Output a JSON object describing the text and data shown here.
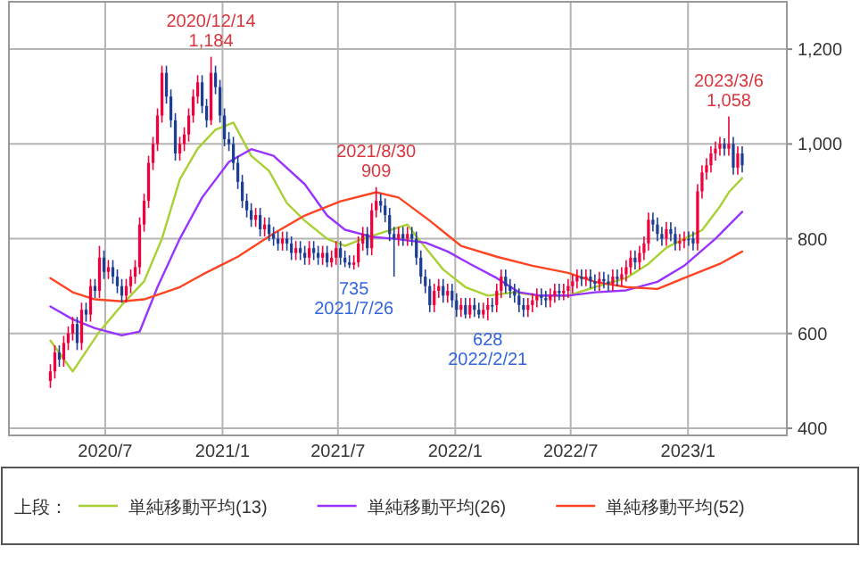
{
  "chart_data": {
    "type": "candlestick",
    "x": [
      "2020-04-06",
      "2020-04-13",
      "2020-04-20",
      "2020-04-27",
      "2020-05-04",
      "2020-05-11",
      "2020-05-18",
      "2020-05-25",
      "2020-06-01",
      "2020-06-08",
      "2020-06-15",
      "2020-06-22",
      "2020-06-29",
      "2020-07-06",
      "2020-07-13",
      "2020-07-20",
      "2020-07-27",
      "2020-08-03",
      "2020-08-10",
      "2020-08-17",
      "2020-08-24",
      "2020-08-31",
      "2020-09-07",
      "2020-09-14",
      "2020-09-21",
      "2020-09-28",
      "2020-10-05",
      "2020-10-12",
      "2020-10-19",
      "2020-10-26",
      "2020-11-02",
      "2020-11-09",
      "2020-11-16",
      "2020-11-23",
      "2020-11-30",
      "2020-12-07",
      "2020-12-14",
      "2020-12-21",
      "2020-12-28",
      "2021-01-04",
      "2021-01-11",
      "2021-01-18",
      "2021-01-25",
      "2021-02-01",
      "2021-02-08",
      "2021-02-15",
      "2021-02-22",
      "2021-03-01",
      "2021-03-08",
      "2021-03-15",
      "2021-03-22",
      "2021-03-29",
      "2021-04-05",
      "2021-04-12",
      "2021-04-19",
      "2021-04-26",
      "2021-05-03",
      "2021-05-10",
      "2021-05-17",
      "2021-05-24",
      "2021-05-31",
      "2021-06-07",
      "2021-06-14",
      "2021-06-21",
      "2021-06-28",
      "2021-07-05",
      "2021-07-12",
      "2021-07-19",
      "2021-07-26",
      "2021-08-02",
      "2021-08-09",
      "2021-08-16",
      "2021-08-23",
      "2021-08-30",
      "2021-09-06",
      "2021-09-13",
      "2021-09-20",
      "2021-09-27",
      "2021-10-04",
      "2021-10-11",
      "2021-10-18",
      "2021-10-25",
      "2021-11-01",
      "2021-11-08",
      "2021-11-15",
      "2021-11-22",
      "2021-11-29",
      "2021-12-06",
      "2021-12-13",
      "2021-12-20",
      "2021-12-27",
      "2022-01-03",
      "2022-01-10",
      "2022-01-17",
      "2022-01-24",
      "2022-01-31",
      "2022-02-07",
      "2022-02-14",
      "2022-02-21",
      "2022-02-28",
      "2022-03-07",
      "2022-03-14",
      "2022-03-21",
      "2022-03-28",
      "2022-04-04",
      "2022-04-11",
      "2022-04-18",
      "2022-04-25",
      "2022-05-02",
      "2022-05-09",
      "2022-05-16",
      "2022-05-23",
      "2022-05-30",
      "2022-06-06",
      "2022-06-13",
      "2022-06-20",
      "2022-06-27",
      "2022-07-04",
      "2022-07-11",
      "2022-07-18",
      "2022-07-25",
      "2022-08-01",
      "2022-08-08",
      "2022-08-15",
      "2022-08-22",
      "2022-08-29",
      "2022-09-05",
      "2022-09-12",
      "2022-09-19",
      "2022-09-26",
      "2022-10-03",
      "2022-10-10",
      "2022-10-17",
      "2022-10-24",
      "2022-10-31",
      "2022-11-07",
      "2022-11-14",
      "2022-11-21",
      "2022-11-28",
      "2022-12-05",
      "2022-12-12",
      "2022-12-19",
      "2022-12-26",
      "2023-01-02",
      "2023-01-09",
      "2023-01-16",
      "2023-01-23",
      "2023-01-30",
      "2023-02-06",
      "2023-02-13",
      "2023-02-20",
      "2023-02-27",
      "2023-03-06",
      "2023-03-13",
      "2023-03-20",
      "2023-03-27"
    ],
    "ohlc": [
      [
        500,
        535,
        485,
        520
      ],
      [
        520,
        575,
        505,
        560
      ],
      [
        560,
        575,
        530,
        545
      ],
      [
        545,
        595,
        530,
        580
      ],
      [
        580,
        615,
        565,
        600
      ],
      [
        600,
        635,
        585,
        620
      ],
      [
        620,
        635,
        565,
        580
      ],
      [
        580,
        665,
        565,
        650
      ],
      [
        650,
        665,
        625,
        640
      ],
      [
        640,
        715,
        625,
        700
      ],
      [
        700,
        715,
        675,
        690
      ],
      [
        690,
        785,
        675,
        760
      ],
      [
        760,
        775,
        715,
        730
      ],
      [
        730,
        755,
        715,
        740
      ],
      [
        740,
        755,
        705,
        720
      ],
      [
        720,
        735,
        685,
        700
      ],
      [
        700,
        715,
        665,
        680
      ],
      [
        680,
        715,
        665,
        700
      ],
      [
        700,
        735,
        685,
        720
      ],
      [
        720,
        755,
        705,
        740
      ],
      [
        740,
        845,
        725,
        830
      ],
      [
        830,
        895,
        815,
        880
      ],
      [
        880,
        975,
        865,
        960
      ],
      [
        960,
        1015,
        945,
        1000
      ],
      [
        1000,
        1075,
        985,
        1060
      ],
      [
        1060,
        1165,
        1045,
        1150
      ],
      [
        1150,
        1165,
        1085,
        1100
      ],
      [
        1100,
        1115,
        1035,
        1050
      ],
      [
        1050,
        1065,
        965,
        980
      ],
      [
        980,
        1015,
        965,
        1000
      ],
      [
        1000,
        1035,
        985,
        1020
      ],
      [
        1020,
        1075,
        1005,
        1060
      ],
      [
        1060,
        1115,
        1045,
        1100
      ],
      [
        1100,
        1145,
        1085,
        1130
      ],
      [
        1130,
        1145,
        1065,
        1080
      ],
      [
        1080,
        1095,
        1035,
        1050
      ],
      [
        1050,
        1184,
        1040,
        1150
      ],
      [
        1150,
        1165,
        1105,
        1120
      ],
      [
        1120,
        1135,
        1045,
        1060
      ],
      [
        1060,
        1075,
        995,
        1010
      ],
      [
        1010,
        1025,
        985,
        1000
      ],
      [
        1000,
        1015,
        945,
        960
      ],
      [
        960,
        975,
        905,
        920
      ],
      [
        920,
        935,
        865,
        880
      ],
      [
        880,
        895,
        845,
        860
      ],
      [
        860,
        875,
        825,
        840
      ],
      [
        840,
        865,
        825,
        850
      ],
      [
        850,
        865,
        805,
        820
      ],
      [
        820,
        845,
        805,
        830
      ],
      [
        830,
        845,
        795,
        810
      ],
      [
        810,
        825,
        785,
        800
      ],
      [
        800,
        815,
        775,
        790
      ],
      [
        790,
        815,
        775,
        800
      ],
      [
        800,
        815,
        775,
        790
      ],
      [
        790,
        805,
        755,
        770
      ],
      [
        770,
        795,
        755,
        780
      ],
      [
        780,
        795,
        755,
        770
      ],
      [
        770,
        785,
        745,
        760
      ],
      [
        760,
        795,
        745,
        780
      ],
      [
        780,
        795,
        755,
        770
      ],
      [
        770,
        785,
        745,
        760
      ],
      [
        760,
        785,
        745,
        770
      ],
      [
        770,
        785,
        740,
        750
      ],
      [
        750,
        775,
        740,
        760
      ],
      [
        760,
        795,
        745,
        780
      ],
      [
        780,
        795,
        745,
        760
      ],
      [
        760,
        775,
        740,
        750
      ],
      [
        750,
        765,
        738,
        745
      ],
      [
        745,
        765,
        735,
        750
      ],
      [
        750,
        805,
        740,
        790
      ],
      [
        790,
        825,
        775,
        810
      ],
      [
        810,
        825,
        765,
        780
      ],
      [
        780,
        875,
        765,
        860
      ],
      [
        860,
        909,
        845,
        880
      ],
      [
        880,
        895,
        855,
        870
      ],
      [
        870,
        885,
        835,
        850
      ],
      [
        850,
        865,
        795,
        810
      ],
      [
        810,
        825,
        720,
        800
      ],
      [
        800,
        825,
        785,
        810
      ],
      [
        810,
        825,
        785,
        800
      ],
      [
        800,
        825,
        785,
        810
      ],
      [
        810,
        825,
        785,
        800
      ],
      [
        800,
        815,
        745,
        760
      ],
      [
        760,
        775,
        705,
        720
      ],
      [
        720,
        735,
        685,
        700
      ],
      [
        700,
        715,
        645,
        660
      ],
      [
        660,
        705,
        645,
        690
      ],
      [
        690,
        715,
        675,
        700
      ],
      [
        700,
        715,
        665,
        680
      ],
      [
        680,
        705,
        665,
        690
      ],
      [
        690,
        705,
        655,
        670
      ],
      [
        670,
        685,
        635,
        650
      ],
      [
        650,
        675,
        635,
        660
      ],
      [
        660,
        675,
        632,
        640
      ],
      [
        640,
        675,
        632,
        660
      ],
      [
        660,
        675,
        635,
        650
      ],
      [
        650,
        665,
        632,
        640
      ],
      [
        640,
        665,
        632,
        650
      ],
      [
        650,
        675,
        628,
        660
      ],
      [
        660,
        675,
        645,
        660
      ],
      [
        660,
        705,
        645,
        690
      ],
      [
        690,
        735,
        675,
        720
      ],
      [
        720,
        735,
        685,
        700
      ],
      [
        700,
        715,
        675,
        690
      ],
      [
        690,
        705,
        665,
        680
      ],
      [
        680,
        695,
        645,
        660
      ],
      [
        660,
        675,
        635,
        650
      ],
      [
        650,
        675,
        635,
        660
      ],
      [
        660,
        685,
        645,
        670
      ],
      [
        670,
        695,
        655,
        680
      ],
      [
        680,
        695,
        660,
        675
      ],
      [
        675,
        690,
        655,
        670
      ],
      [
        670,
        695,
        655,
        680
      ],
      [
        680,
        705,
        665,
        690
      ],
      [
        690,
        705,
        670,
        685
      ],
      [
        685,
        705,
        670,
        690
      ],
      [
        690,
        715,
        675,
        700
      ],
      [
        700,
        725,
        685,
        710
      ],
      [
        710,
        735,
        695,
        720
      ],
      [
        720,
        735,
        700,
        715
      ],
      [
        715,
        735,
        700,
        720
      ],
      [
        720,
        735,
        695,
        710
      ],
      [
        710,
        725,
        690,
        705
      ],
      [
        705,
        730,
        690,
        715
      ],
      [
        715,
        730,
        695,
        710
      ],
      [
        710,
        725,
        690,
        705
      ],
      [
        705,
        735,
        690,
        720
      ],
      [
        720,
        735,
        700,
        715
      ],
      [
        715,
        740,
        700,
        725
      ],
      [
        725,
        755,
        710,
        740
      ],
      [
        740,
        775,
        725,
        760
      ],
      [
        760,
        775,
        735,
        750
      ],
      [
        750,
        785,
        735,
        770
      ],
      [
        770,
        805,
        755,
        790
      ],
      [
        790,
        855,
        775,
        840
      ],
      [
        840,
        855,
        815,
        830
      ],
      [
        830,
        845,
        795,
        810
      ],
      [
        810,
        825,
        785,
        800
      ],
      [
        800,
        835,
        785,
        820
      ],
      [
        820,
        835,
        795,
        810
      ],
      [
        810,
        825,
        775,
        790
      ],
      [
        790,
        810,
        775,
        795
      ],
      [
        795,
        815,
        780,
        800
      ],
      [
        800,
        815,
        785,
        800
      ],
      [
        800,
        815,
        775,
        790
      ],
      [
        790,
        915,
        775,
        900
      ],
      [
        900,
        955,
        885,
        940
      ],
      [
        940,
        970,
        925,
        955
      ],
      [
        955,
        995,
        940,
        980
      ],
      [
        980,
        1005,
        965,
        990
      ],
      [
        990,
        1015,
        975,
        1000
      ],
      [
        1000,
        1012,
        975,
        990
      ],
      [
        990,
        1058,
        975,
        1000
      ],
      [
        1000,
        1015,
        935,
        950
      ],
      [
        950,
        995,
        935,
        980
      ],
      [
        980,
        995,
        940,
        955
      ]
    ],
    "colors": [
      "#f0003c",
      "#f0003c",
      "#1c3f94",
      "#f0003c",
      "#f0003c",
      "#f0003c",
      "#1c3f94",
      "#f0003c",
      "#1c3f94",
      "#f0003c",
      "#1c3f94",
      "#f0003c",
      "#1c3f94",
      "#f0003c",
      "#1c3f94",
      "#1c3f94",
      "#1c3f94",
      "#f0003c",
      "#f0003c",
      "#f0003c",
      "#f0003c",
      "#f0003c",
      "#f0003c",
      "#f0003c",
      "#f0003c",
      "#f0003c",
      "#1c3f94",
      "#1c3f94",
      "#1c3f94",
      "#f0003c",
      "#f0003c",
      "#f0003c",
      "#f0003c",
      "#f0003c",
      "#1c3f94",
      "#1c3f94",
      "#f0003c",
      "#1c3f94",
      "#1c3f94",
      "#1c3f94",
      "#1c3f94",
      "#1c3f94",
      "#1c3f94",
      "#1c3f94",
      "#1c3f94",
      "#1c3f94",
      "#f0003c",
      "#1c3f94",
      "#f0003c",
      "#1c3f94",
      "#1c3f94",
      "#1c3f94",
      "#f0003c",
      "#1c3f94",
      "#1c3f94",
      "#f0003c",
      "#1c3f94",
      "#1c3f94",
      "#f0003c",
      "#1c3f94",
      "#1c3f94",
      "#f0003c",
      "#1c3f94",
      "#f0003c",
      "#f0003c",
      "#1c3f94",
      "#1c3f94",
      "#1c3f94",
      "#f0003c",
      "#f0003c",
      "#f0003c",
      "#1c3f94",
      "#f0003c",
      "#f0003c",
      "#1c3f94",
      "#1c3f94",
      "#1c3f94",
      "#1c3f94",
      "#f0003c",
      "#1c3f94",
      "#f0003c",
      "#1c3f94",
      "#1c3f94",
      "#1c3f94",
      "#1c3f94",
      "#1c3f94",
      "#f0003c",
      "#f0003c",
      "#1c3f94",
      "#f0003c",
      "#1c3f94",
      "#1c3f94",
      "#f0003c",
      "#1c3f94",
      "#f0003c",
      "#1c3f94",
      "#1c3f94",
      "#f0003c",
      "#f0003c",
      "#1c3f94",
      "#f0003c",
      "#f0003c",
      "#1c3f94",
      "#1c3f94",
      "#1c3f94",
      "#1c3f94",
      "#1c3f94",
      "#f0003c",
      "#f0003c",
      "#f0003c",
      "#1c3f94",
      "#1c3f94",
      "#f0003c",
      "#f0003c",
      "#1c3f94",
      "#f0003c",
      "#f0003c",
      "#f0003c",
      "#f0003c",
      "#1c3f94",
      "#f0003c",
      "#1c3f94",
      "#1c3f94",
      "#f0003c",
      "#1c3f94",
      "#1c3f94",
      "#f0003c",
      "#1c3f94",
      "#f0003c",
      "#f0003c",
      "#f0003c",
      "#1c3f94",
      "#f0003c",
      "#f0003c",
      "#f0003c",
      "#1c3f94",
      "#1c3f94",
      "#1c3f94",
      "#f0003c",
      "#1c3f94",
      "#1c3f94",
      "#f0003c",
      "#f0003c",
      "#1c3f94",
      "#1c3f94",
      "#f0003c",
      "#f0003c",
      "#f0003c",
      "#f0003c",
      "#f0003c",
      "#f0003c",
      "#1c3f94",
      "#f0003c",
      "#1c3f94",
      "#f0003c",
      "#1c3f94"
    ],
    "series": [
      {
        "type": "line",
        "name": "単純移動平均(13)",
        "color": "#a8d032",
        "x": [
          "2020-04-06",
          "2020-05-11",
          "2020-06-22",
          "2020-07-27",
          "2020-08-31",
          "2020-09-28",
          "2020-10-26",
          "2020-11-23",
          "2020-12-21",
          "2021-01-18",
          "2021-02-15",
          "2021-03-15",
          "2021-04-12",
          "2021-05-10",
          "2021-06-14",
          "2021-07-12",
          "2021-08-09",
          "2021-09-20",
          "2021-10-18",
          "2021-11-01",
          "2021-12-13",
          "2022-01-17",
          "2022-02-21",
          "2022-04-04",
          "2022-05-09",
          "2022-06-27",
          "2022-08-08",
          "2022-09-26",
          "2022-10-31",
          "2022-11-28",
          "2022-12-26",
          "2023-01-23",
          "2023-02-20",
          "2023-03-06",
          "2023-03-27"
        ],
        "values": [
          585,
          520,
          604,
          660,
          710,
          800,
          925,
          990,
          1030,
          1045,
          975,
          943,
          875,
          838,
          800,
          785,
          800,
          818,
          830,
          805,
          735,
          698,
          680,
          687,
          680,
          680,
          698,
          717,
          747,
          781,
          800,
          818,
          868,
          898,
          928
        ]
      },
      {
        "type": "line",
        "name": "単純移動平均(26)",
        "color": "#9933ff",
        "x": [
          "2020-04-06",
          "2020-05-11",
          "2020-06-15",
          "2020-07-27",
          "2020-08-24",
          "2020-09-21",
          "2020-10-26",
          "2020-11-30",
          "2021-01-11",
          "2021-02-15",
          "2021-03-22",
          "2021-05-10",
          "2021-06-14",
          "2021-07-12",
          "2021-08-23",
          "2021-09-27",
          "2021-11-15",
          "2021-12-20",
          "2022-01-24",
          "2022-03-07",
          "2022-04-11",
          "2022-05-16",
          "2022-06-27",
          "2022-08-08",
          "2022-09-26",
          "2022-11-14",
          "2022-12-26",
          "2023-02-13",
          "2023-03-27"
        ],
        "values": [
          657,
          630,
          611,
          596,
          604,
          698,
          800,
          887,
          962,
          989,
          975,
          915,
          849,
          819,
          804,
          800,
          792,
          773,
          747,
          717,
          687,
          680,
          680,
          687,
          691,
          709,
          743,
          800,
          857
        ]
      },
      {
        "type": "line",
        "name": "単純移動平均(52)",
        "color": "#ff4422",
        "x": [
          "2020-04-06",
          "2020-05-11",
          "2020-06-15",
          "2020-07-27",
          "2020-08-31",
          "2020-10-26",
          "2020-11-30",
          "2021-01-25",
          "2021-03-22",
          "2021-05-10",
          "2021-07-05",
          "2021-08-30",
          "2021-10-04",
          "2021-11-22",
          "2022-01-10",
          "2022-03-07",
          "2022-05-02",
          "2022-06-27",
          "2022-08-08",
          "2022-09-26",
          "2022-11-14",
          "2022-12-26",
          "2023-02-20",
          "2023-03-27"
        ],
        "values": [
          717,
          687,
          672,
          668,
          672,
          698,
          724,
          762,
          811,
          849,
          879,
          898,
          887,
          838,
          785,
          762,
          743,
          728,
          709,
          698,
          694,
          717,
          747,
          773
        ]
      }
    ],
    "xlim": [
      "2020-02-01",
      "2023-06-05"
    ],
    "xticks": [
      {
        "value": "2020-07-01",
        "label": "2020/7"
      },
      {
        "value": "2021-01-01",
        "label": "2021/1"
      },
      {
        "value": "2021-07-01",
        "label": "2021/7"
      },
      {
        "value": "2022-01-01",
        "label": "2022/1"
      },
      {
        "value": "2022-07-01",
        "label": "2022/7"
      },
      {
        "value": "2023-01-01",
        "label": "2023/1"
      }
    ],
    "ylim": [
      385,
      1300
    ],
    "yticks": [
      400,
      600,
      {
        "value": 800,
        "label": "800"
      },
      {
        "value": 1000,
        "label": "1,000"
      },
      {
        "value": 1200,
        "label": "1,200"
      }
    ],
    "grid": true,
    "legend": "bottom",
    "legend_title": "上段：",
    "annotations": [
      {
        "text": "2020/12/14\n1,184",
        "x": "2020-12-14",
        "y": 1184
      },
      {
        "text": "735\n2021/7/26",
        "x": "2021-07-26",
        "y": 735
      },
      {
        "text": "2021/8/30\n909",
        "x": "2021-08-30",
        "y": 909
      },
      {
        "text": "628\n2022/2/21",
        "x": "2022-02-21",
        "y": 628
      },
      {
        "text": "2023/3/6\n1,058",
        "x": "2023-03-06",
        "y": 1058
      }
    ]
  }
}
